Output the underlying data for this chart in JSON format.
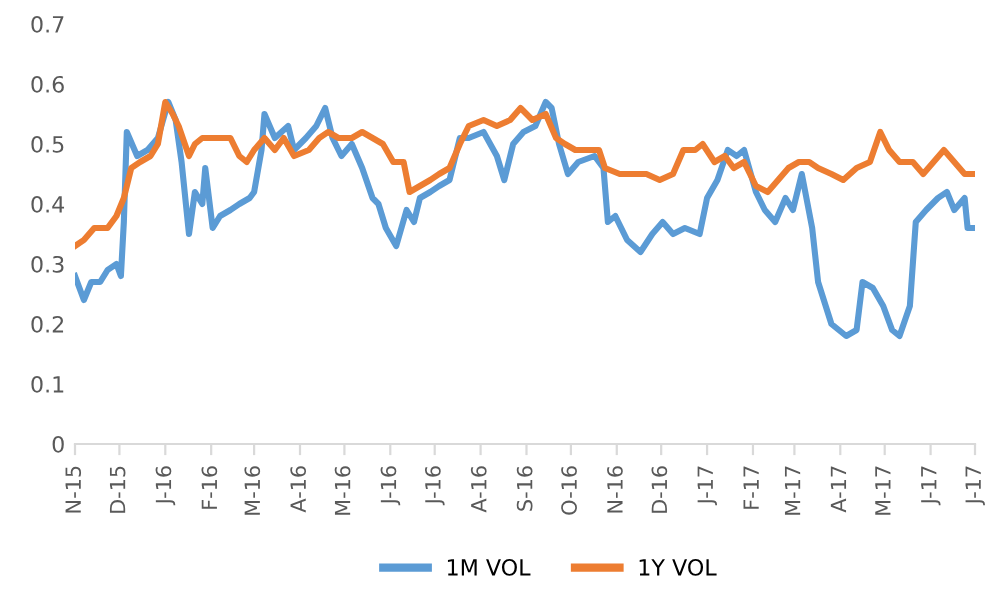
{
  "chart_data": {
    "type": "line",
    "xlim": [
      "2015-11-01",
      "2017-07-01"
    ],
    "ylim": [
      0,
      0.7
    ],
    "yticks": [
      0,
      0.1,
      0.2,
      0.3,
      0.4,
      0.5,
      0.6,
      0.7
    ],
    "xticks": [
      {
        "value": "2015-11-01",
        "label": "N-15"
      },
      {
        "value": "2015-12-01",
        "label": "D-15"
      },
      {
        "value": "2016-01-01",
        "label": "J-16"
      },
      {
        "value": "2016-02-01",
        "label": "F-16"
      },
      {
        "value": "2016-03-01",
        "label": "M-16"
      },
      {
        "value": "2016-04-01",
        "label": "A-16"
      },
      {
        "value": "2016-05-01",
        "label": "M-16"
      },
      {
        "value": "2016-06-01",
        "label": "J-16"
      },
      {
        "value": "2016-07-01",
        "label": "J-16"
      },
      {
        "value": "2016-08-01",
        "label": "A-16"
      },
      {
        "value": "2016-09-01",
        "label": "S-16"
      },
      {
        "value": "2016-10-01",
        "label": "O-16"
      },
      {
        "value": "2016-11-01",
        "label": "N-16"
      },
      {
        "value": "2016-12-01",
        "label": "D-16"
      },
      {
        "value": "2017-01-01",
        "label": "J-17"
      },
      {
        "value": "2017-02-01",
        "label": "F-17"
      },
      {
        "value": "2017-03-01",
        "label": "M-17"
      },
      {
        "value": "2017-04-01",
        "label": "A-17"
      },
      {
        "value": "2017-05-01",
        "label": "M-17"
      },
      {
        "value": "2017-06-01",
        "label": "J-17"
      },
      {
        "value": "2017-07-01",
        "label": "J-17"
      }
    ],
    "grid": false,
    "legend": "bottom",
    "marker": "none",
    "line_style": "solid",
    "series": [
      {
        "name": "1M VOL",
        "color": "#5b9bd5",
        "x": [
          "2015-11-01",
          "2015-11-07",
          "2015-11-12",
          "2015-11-18",
          "2015-11-23",
          "2015-11-29",
          "2015-12-02",
          "2015-12-04",
          "2015-12-06",
          "2015-12-13",
          "2015-12-20",
          "2015-12-27",
          "2016-01-03",
          "2016-01-08",
          "2016-01-12",
          "2016-01-17",
          "2016-01-21",
          "2016-01-26",
          "2016-01-28",
          "2016-02-02",
          "2016-02-07",
          "2016-02-14",
          "2016-02-20",
          "2016-02-27",
          "2016-03-01",
          "2016-03-06",
          "2016-03-08",
          "2016-03-15",
          "2016-03-24",
          "2016-03-28",
          "2016-04-05",
          "2016-04-12",
          "2016-04-18",
          "2016-04-23",
          "2016-04-29",
          "2016-05-06",
          "2016-05-13",
          "2016-05-20",
          "2016-05-24",
          "2016-05-29",
          "2016-06-05",
          "2016-06-12",
          "2016-06-17",
          "2016-06-21",
          "2016-06-28",
          "2016-07-04",
          "2016-07-11",
          "2016-07-18",
          "2016-07-24",
          "2016-08-03",
          "2016-08-12",
          "2016-08-17",
          "2016-08-23",
          "2016-08-30",
          "2016-09-07",
          "2016-09-14",
          "2016-09-18",
          "2016-09-23",
          "2016-09-29",
          "2016-10-06",
          "2016-10-17",
          "2016-10-23",
          "2016-10-26",
          "2016-10-31",
          "2016-11-08",
          "2016-11-17",
          "2016-11-25",
          "2016-12-02",
          "2016-12-09",
          "2016-12-17",
          "2016-12-27",
          "2017-01-01",
          "2017-01-08",
          "2017-01-15",
          "2017-01-21",
          "2017-01-26",
          "2017-02-03",
          "2017-02-09",
          "2017-02-16",
          "2017-02-23",
          "2017-02-28",
          "2017-03-06",
          "2017-03-13",
          "2017-03-17",
          "2017-03-26",
          "2017-04-05",
          "2017-04-12",
          "2017-04-16",
          "2017-04-23",
          "2017-04-30",
          "2017-05-06",
          "2017-05-11",
          "2017-05-18",
          "2017-05-22",
          "2017-05-29",
          "2017-06-06",
          "2017-06-12",
          "2017-06-17",
          "2017-06-24",
          "2017-06-26",
          "2017-07-01"
        ],
        "values": [
          0.28,
          0.24,
          0.27,
          0.27,
          0.29,
          0.3,
          0.28,
          0.37,
          0.52,
          0.48,
          0.49,
          0.51,
          0.57,
          0.54,
          0.47,
          0.35,
          0.42,
          0.4,
          0.46,
          0.36,
          0.38,
          0.39,
          0.4,
          0.41,
          0.42,
          0.49,
          0.55,
          0.51,
          0.53,
          0.49,
          0.51,
          0.53,
          0.56,
          0.51,
          0.48,
          0.5,
          0.46,
          0.41,
          0.4,
          0.36,
          0.33,
          0.39,
          0.37,
          0.41,
          0.42,
          0.43,
          0.44,
          0.51,
          0.51,
          0.52,
          0.48,
          0.44,
          0.5,
          0.52,
          0.53,
          0.57,
          0.56,
          0.5,
          0.45,
          0.47,
          0.48,
          0.46,
          0.37,
          0.38,
          0.34,
          0.32,
          0.35,
          0.37,
          0.35,
          0.36,
          0.35,
          0.41,
          0.44,
          0.49,
          0.48,
          0.49,
          0.42,
          0.39,
          0.37,
          0.41,
          0.39,
          0.45,
          0.36,
          0.27,
          0.2,
          0.18,
          0.19,
          0.27,
          0.26,
          0.23,
          0.19,
          0.18,
          0.23,
          0.37,
          0.39,
          0.41,
          0.42,
          0.39,
          0.41,
          0.36,
          0.36
        ]
      },
      {
        "name": "1Y VOL",
        "color": "#ed7d31",
        "x": [
          "2015-11-01",
          "2015-11-07",
          "2015-11-14",
          "2015-11-23",
          "2015-11-29",
          "2015-12-04",
          "2015-12-09",
          "2015-12-15",
          "2015-12-22",
          "2015-12-27",
          "2016-01-01",
          "2016-01-06",
          "2016-01-10",
          "2016-01-17",
          "2016-01-21",
          "2016-01-26",
          "2016-02-05",
          "2016-02-14",
          "2016-02-20",
          "2016-02-25",
          "2016-03-01",
          "2016-03-08",
          "2016-03-15",
          "2016-03-21",
          "2016-03-28",
          "2016-04-07",
          "2016-04-14",
          "2016-04-20",
          "2016-04-27",
          "2016-05-06",
          "2016-05-13",
          "2016-05-20",
          "2016-05-27",
          "2016-06-03",
          "2016-06-10",
          "2016-06-14",
          "2016-06-21",
          "2016-06-28",
          "2016-07-04",
          "2016-07-11",
          "2016-07-18",
          "2016-07-24",
          "2016-08-03",
          "2016-08-12",
          "2016-08-21",
          "2016-08-28",
          "2016-09-05",
          "2016-09-14",
          "2016-09-21",
          "2016-09-27",
          "2016-10-04",
          "2016-10-11",
          "2016-10-20",
          "2016-10-24",
          "2016-11-03",
          "2016-11-12",
          "2016-11-21",
          "2016-11-30",
          "2016-12-09",
          "2016-12-16",
          "2016-12-24",
          "2016-12-29",
          "2017-01-06",
          "2017-01-13",
          "2017-01-19",
          "2017-01-26",
          "2017-02-03",
          "2017-02-11",
          "2017-02-18",
          "2017-02-25",
          "2017-03-04",
          "2017-03-11",
          "2017-03-17",
          "2017-03-26",
          "2017-04-03",
          "2017-04-12",
          "2017-04-21",
          "2017-04-28",
          "2017-05-04",
          "2017-05-11",
          "2017-05-20",
          "2017-05-27",
          "2017-06-03",
          "2017-06-10",
          "2017-06-17",
          "2017-06-24",
          "2017-07-01"
        ],
        "values": [
          0.33,
          0.34,
          0.36,
          0.36,
          0.38,
          0.41,
          0.46,
          0.47,
          0.48,
          0.5,
          0.57,
          0.55,
          0.53,
          0.48,
          0.5,
          0.51,
          0.51,
          0.51,
          0.48,
          0.47,
          0.49,
          0.51,
          0.49,
          0.51,
          0.48,
          0.49,
          0.51,
          0.52,
          0.51,
          0.51,
          0.52,
          0.51,
          0.5,
          0.47,
          0.47,
          0.42,
          0.43,
          0.44,
          0.45,
          0.46,
          0.5,
          0.53,
          0.54,
          0.53,
          0.54,
          0.56,
          0.54,
          0.55,
          0.51,
          0.5,
          0.49,
          0.49,
          0.49,
          0.46,
          0.45,
          0.45,
          0.45,
          0.44,
          0.45,
          0.49,
          0.49,
          0.5,
          0.47,
          0.48,
          0.46,
          0.47,
          0.43,
          0.42,
          0.44,
          0.46,
          0.47,
          0.47,
          0.46,
          0.45,
          0.44,
          0.46,
          0.47,
          0.52,
          0.49,
          0.47,
          0.47,
          0.45,
          0.47,
          0.49,
          0.47,
          0.45,
          0.45
        ]
      }
    ]
  }
}
